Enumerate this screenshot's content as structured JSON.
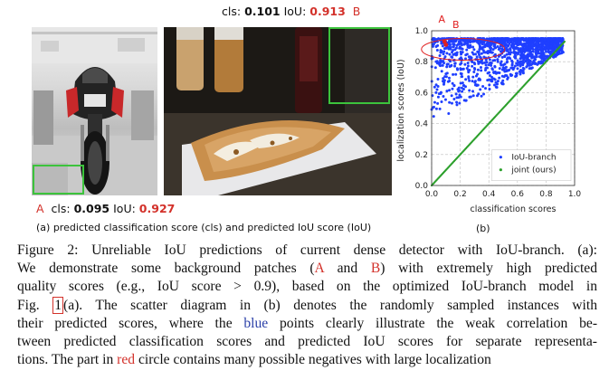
{
  "annotations": {
    "top": {
      "cls_label": "cls:",
      "cls_value": "0.101",
      "iou_label": "IoU:",
      "iou_value": "0.913",
      "patch": "B"
    },
    "bottom": {
      "patch": "A",
      "cls_label": "cls:",
      "cls_value": "0.095",
      "iou_label": "IoU:",
      "iou_value": "0.927"
    }
  },
  "captions": {
    "a": "(a) predicted classification score (cls) and predicted IoU score (IoU)",
    "b": "(b)"
  },
  "chart_data": {
    "type": "scatter",
    "xlabel": "classification scores",
    "ylabel": "localization scores (IoU)",
    "xlim": [
      0.0,
      1.0
    ],
    "ylim": [
      0.0,
      1.0
    ],
    "xticks": [
      "0.0",
      "0.2",
      "0.4",
      "0.6",
      "0.8",
      "1.0"
    ],
    "yticks": [
      "0.0",
      "0.2",
      "0.4",
      "0.6",
      "0.8",
      "1.0"
    ],
    "grid": true,
    "legend_placement": "bottom-right",
    "series": [
      {
        "name": "IoU-branch",
        "color": "#1f3fff",
        "trend": "dense cloud, y from about 0.35 to 0.95, clustered near top",
        "x_range": [
          0.0,
          0.92
        ],
        "y_range": [
          0.35,
          0.95
        ]
      },
      {
        "name": "joint (ours)",
        "color": "#2ca02c",
        "trend": "y equals x",
        "x_range": [
          0.0,
          0.93
        ],
        "y_range": [
          0.0,
          0.93
        ]
      }
    ],
    "annotations": {
      "point_a_label": "A",
      "point_b_label": "B",
      "point_a": {
        "x": 0.09,
        "y": 0.93
      },
      "point_b": {
        "x": 0.1,
        "y": 0.91
      },
      "circle_color": "#e02020"
    }
  },
  "paragraph": {
    "lines": [
      [
        "Figure 2: Unreliable IoU predictions of current dense detector with IoU-branch. (a):"
      ],
      [
        "We demonstrate some background patches (",
        {
          "red": "A"
        },
        " and ",
        {
          "red": "B"
        },
        ") with extremely high predicted"
      ],
      [
        "quality scores (e.g., IoU score > 0.9), based on the optimized IoU-branch model in"
      ],
      [
        "Fig. ",
        {
          "box": "1"
        },
        "(a). The scatter diagram in (b) denotes the randomly sampled instances with"
      ],
      [
        "their predicted scores, where the ",
        {
          "blue": "blue"
        },
        " points clearly illustrate the weak correlation be-"
      ],
      [
        "tween predicted classification scores and predicted IoU scores for separate representa-"
      ],
      [
        "tions. The part in ",
        {
          "red": "red"
        },
        " circle contains many possible negatives with large localization"
      ]
    ]
  }
}
